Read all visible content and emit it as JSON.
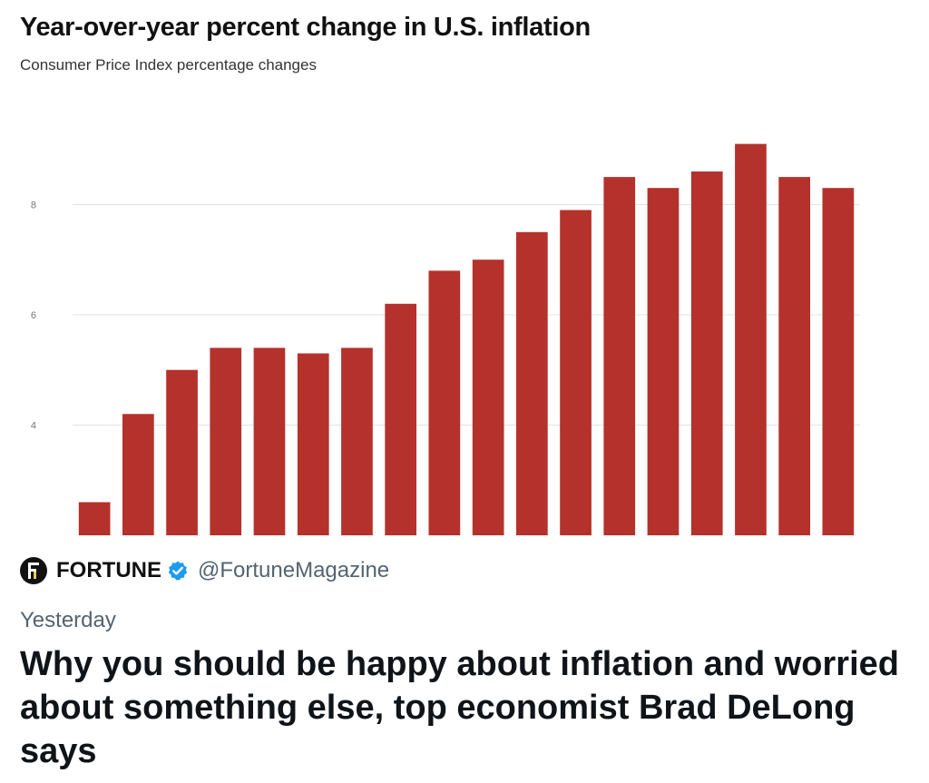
{
  "chart_data": {
    "type": "bar",
    "title": "Year-over-year percent change in U.S. inflation",
    "subtitle": "Consumer Price Index percentage changes",
    "values": [
      2.6,
      4.2,
      5.0,
      5.4,
      5.4,
      5.3,
      5.4,
      6.2,
      6.8,
      7.0,
      7.5,
      7.9,
      8.5,
      8.3,
      8.6,
      9.1,
      8.5,
      8.3
    ],
    "y_ticks": [
      4,
      6,
      8
    ],
    "ylim": [
      2,
      9.9
    ],
    "grid": true,
    "bar_color": "#b5312b",
    "grid_color": "#e3e3e3"
  },
  "tweet": {
    "account_name": "FORTUNE",
    "avatar_letter": "F",
    "verified": true,
    "verified_color": "#1d9bf0",
    "handle": "@FortuneMagazine",
    "timestamp": "Yesterday",
    "headline": "Why you should be happy about inflation and worried about something else, top economist Brad DeLong says"
  }
}
